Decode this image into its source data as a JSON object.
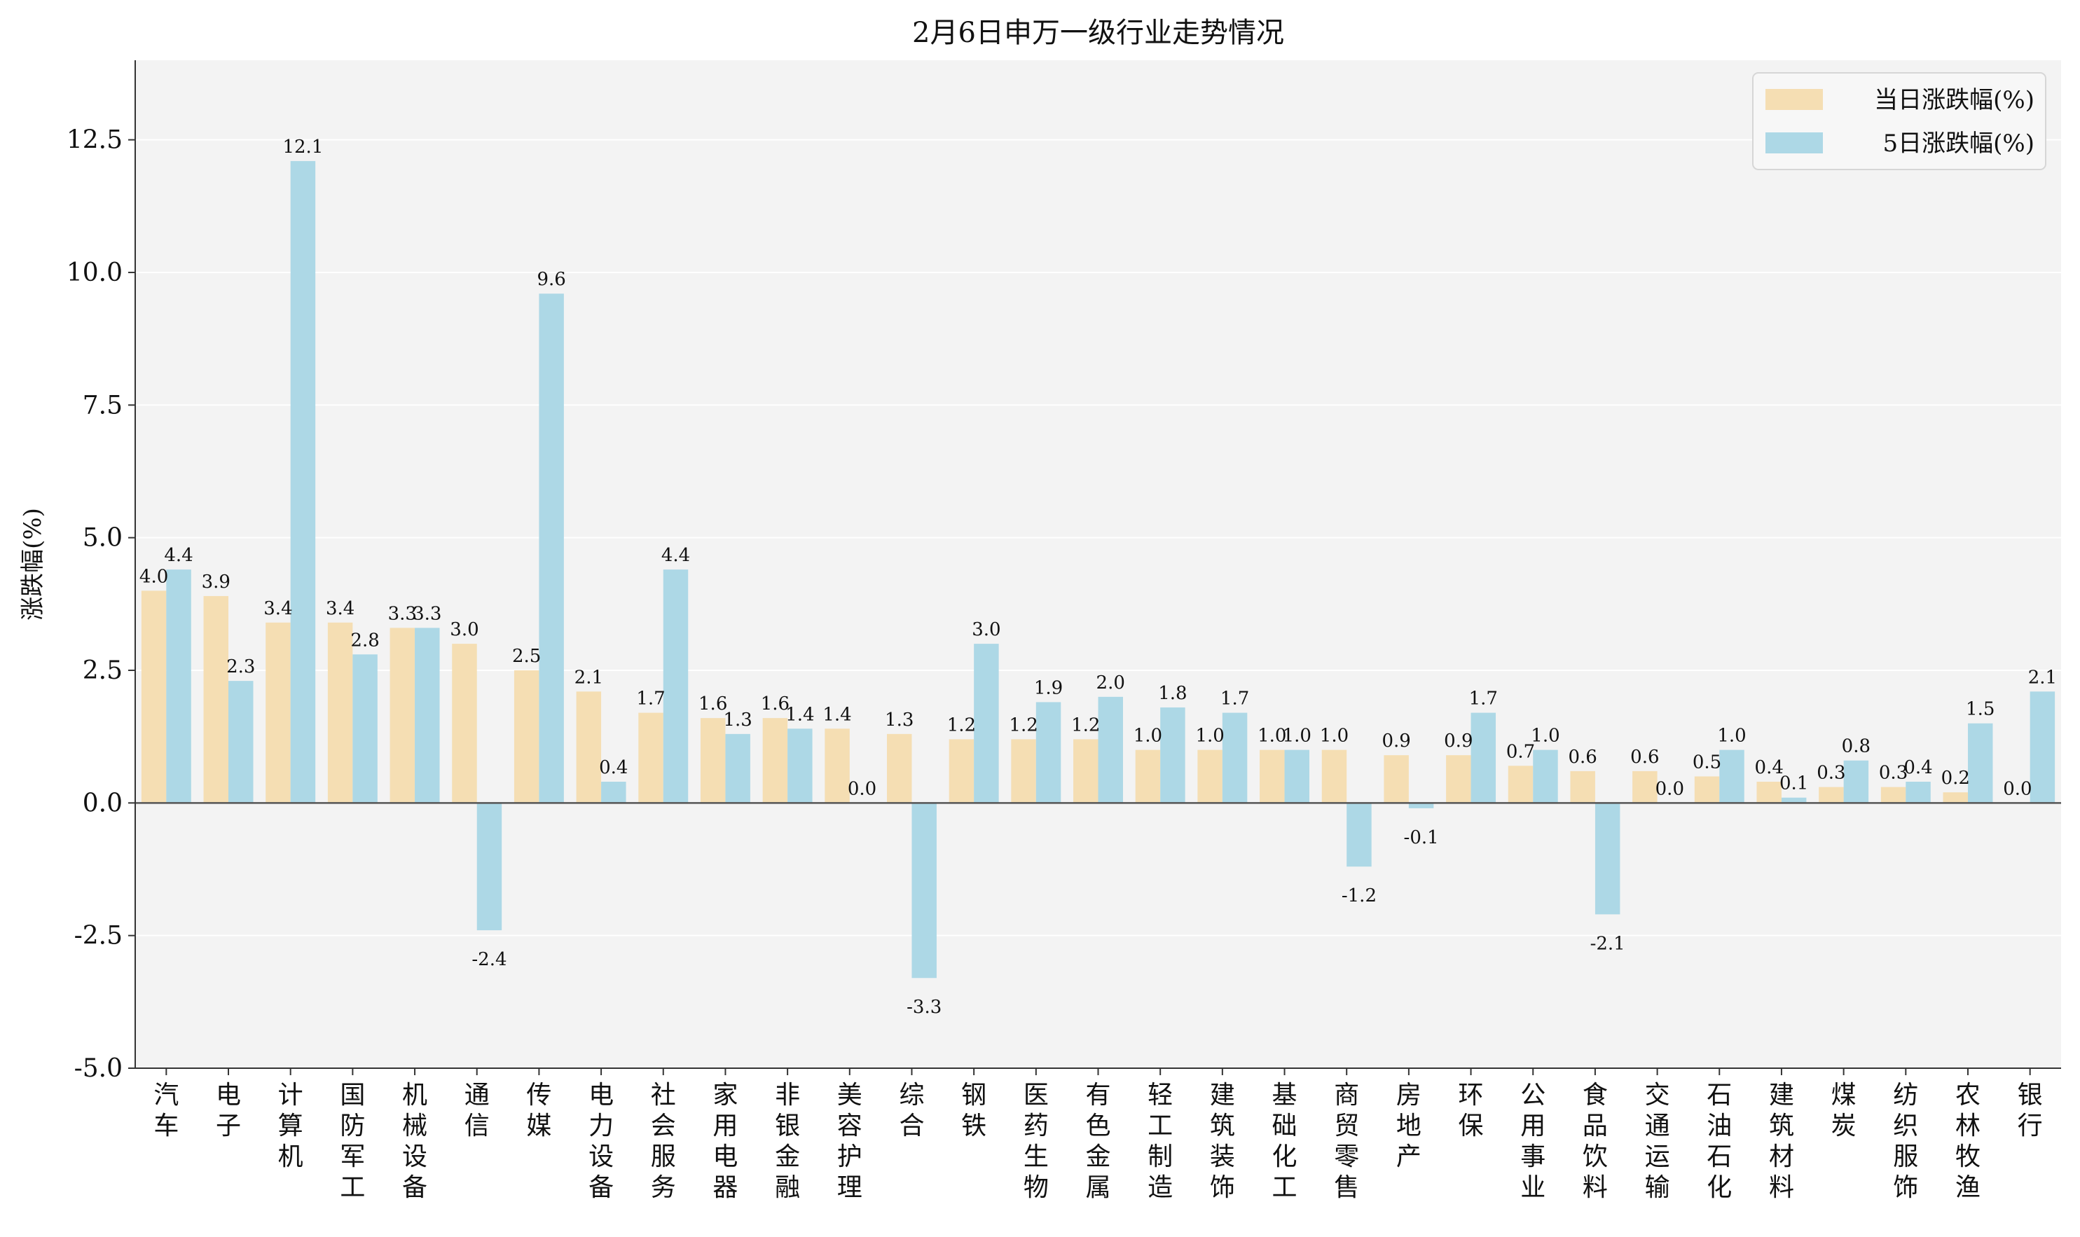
{
  "chart_data": {
    "type": "bar",
    "title": "2月6日申万一级行业走势情况",
    "xlabel": "",
    "ylabel": "涨跌幅(%)",
    "ylim": [
      -5,
      14
    ],
    "yticks": [
      "-5.0",
      "-2.5",
      "0.0",
      "2.5",
      "5.0",
      "7.5",
      "10.0",
      "12.5"
    ],
    "grid": true,
    "legend_position": "top-right",
    "categories": [
      "汽车",
      "电子",
      "计算机",
      "国防军工",
      "机械设备",
      "通信",
      "传媒",
      "电力设备",
      "社会服务",
      "家用电器",
      "非银金融",
      "美容护理",
      "综合",
      "钢铁",
      "医药生物",
      "有色金属",
      "轻工制造",
      "建筑装饰",
      "基础化工",
      "商贸零售",
      "房地产",
      "环保",
      "公用事业",
      "食品饮料",
      "交通运输",
      "石油石化",
      "建筑材料",
      "煤炭",
      "纺织服饰",
      "农林牧渔",
      "银行"
    ],
    "series": [
      {
        "name": "当日涨跌幅(%)",
        "color": "#f5deb3",
        "values": [
          4.0,
          3.9,
          3.4,
          3.4,
          3.3,
          3.0,
          2.5,
          2.1,
          1.7,
          1.6,
          1.6,
          1.4,
          1.3,
          1.2,
          1.2,
          1.2,
          1.0,
          1.0,
          1.0,
          1.0,
          0.9,
          0.9,
          0.7,
          0.6,
          0.6,
          0.5,
          0.4,
          0.3,
          0.3,
          0.2,
          0.0
        ],
        "labels": [
          "4.0",
          "3.9",
          "3.4",
          "3.4",
          "3.3",
          "3.0",
          "2.5",
          "2.1",
          "1.7",
          "1.6",
          "1.6",
          "1.4",
          "1.3",
          "1.2",
          "1.2",
          "1.2",
          "1.0",
          "1.0",
          "1.0",
          "1.0",
          "0.9",
          "0.9",
          "0.7",
          "0.6",
          "0.6",
          "0.5",
          "0.4",
          "0.3",
          "0.3",
          "0.2",
          "0.0"
        ]
      },
      {
        "name": "5日涨跌幅(%)",
        "color": "#add8e6",
        "values": [
          4.4,
          2.3,
          12.1,
          2.8,
          3.3,
          -2.4,
          9.6,
          0.4,
          4.4,
          1.3,
          1.4,
          0.0,
          -3.3,
          3.0,
          1.9,
          2.0,
          1.8,
          1.7,
          1.0,
          -1.2,
          -0.1,
          1.7,
          1.0,
          -2.1,
          0.0,
          1.0,
          0.1,
          0.8,
          0.4,
          1.5,
          2.1
        ],
        "labels": [
          "4.4",
          "2.3",
          "12.1",
          "2.8",
          "3.3",
          "-2.4",
          "9.6",
          "0.4",
          "4.4",
          "1.3",
          "1.4",
          "0.0",
          "-3.3",
          "3.0",
          "1.9",
          "2.0",
          "1.8",
          "1.7",
          "1.0",
          "-1.2",
          "-0.1",
          "1.7",
          "1.0",
          "-2.1",
          "0.0",
          "1.0",
          "0.1",
          "0.8",
          "0.4",
          "1.5",
          "2.1"
        ]
      }
    ]
  }
}
